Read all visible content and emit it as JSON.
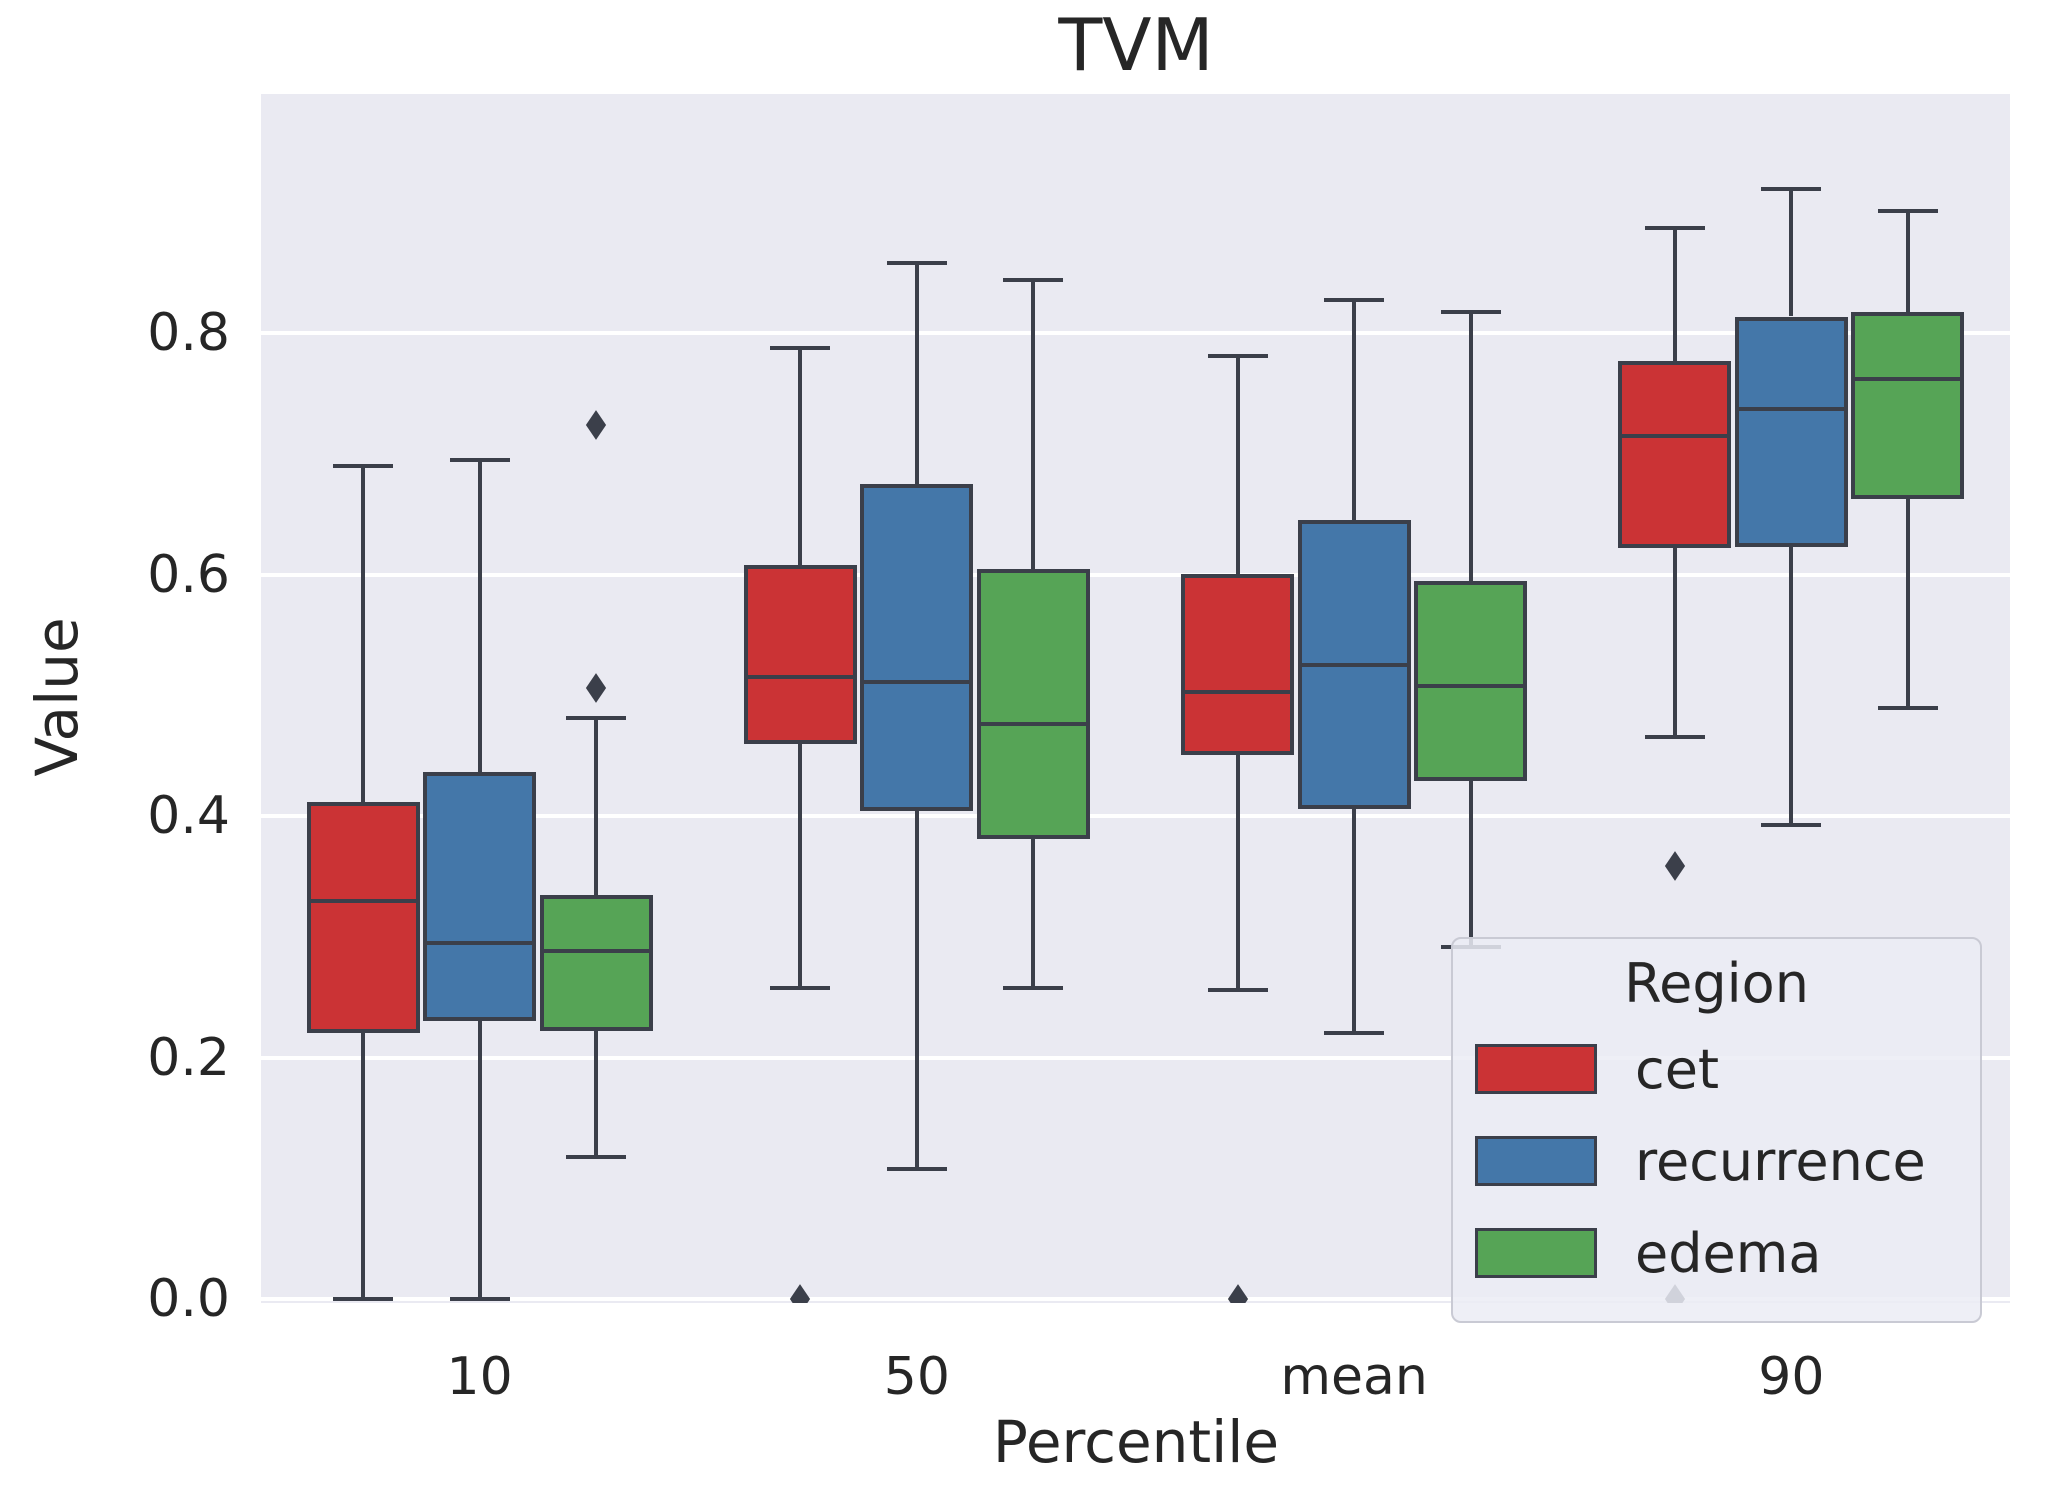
{
  "title": "TVM",
  "colors": {
    "cet": "#cb3335",
    "recurrence": "#4477a9",
    "edema": "#56a456",
    "box_line": "#3b3f4a",
    "plot_background": "#eaeaf2",
    "gridline": "#ffffff",
    "text": "#262626"
  },
  "chart_data": {
    "type": "box",
    "title": "TVM",
    "xlabel": "Percentile",
    "ylabel": "Value",
    "legend_title": "Region",
    "legend_position": "lower right",
    "grid": true,
    "categories": [
      "10",
      "50",
      "mean",
      "90"
    ],
    "yticks": [
      0.0,
      0.2,
      0.4,
      0.6,
      0.8
    ],
    "ylim": [
      -0.003,
      0.998
    ],
    "series": [
      {
        "name": "cet",
        "color": "#cb3335",
        "boxes": [
          {
            "category": "10",
            "whislo": 0.0,
            "q1": 0.22,
            "med": 0.33,
            "q3": 0.412,
            "whishi": 0.69,
            "fliers": []
          },
          {
            "category": "50",
            "whislo": 0.258,
            "q1": 0.46,
            "med": 0.515,
            "q3": 0.608,
            "whishi": 0.788,
            "fliers": [
              0.0
            ]
          },
          {
            "category": "mean",
            "whislo": 0.256,
            "q1": 0.451,
            "med": 0.503,
            "q3": 0.601,
            "whishi": 0.781,
            "fliers": [
              0.0
            ]
          },
          {
            "category": "90",
            "whislo": 0.466,
            "q1": 0.622,
            "med": 0.715,
            "q3": 0.777,
            "whishi": 0.887,
            "fliers": [
              0.359,
              0.0
            ]
          }
        ]
      },
      {
        "name": "recurrence",
        "color": "#4477a9",
        "boxes": [
          {
            "category": "10",
            "whislo": 0.0,
            "q1": 0.23,
            "med": 0.295,
            "q3": 0.437,
            "whishi": 0.695,
            "fliers": []
          },
          {
            "category": "50",
            "whislo": 0.108,
            "q1": 0.404,
            "med": 0.511,
            "q3": 0.675,
            "whishi": 0.858,
            "fliers": []
          },
          {
            "category": "mean",
            "whislo": 0.22,
            "q1": 0.406,
            "med": 0.525,
            "q3": 0.645,
            "whishi": 0.828,
            "fliers": []
          },
          {
            "category": "90",
            "whislo": 0.393,
            "q1": 0.623,
            "med": 0.737,
            "q3": 0.814,
            "whishi": 0.92,
            "fliers": []
          }
        ]
      },
      {
        "name": "edema",
        "color": "#56a456",
        "boxes": [
          {
            "category": "10",
            "whislo": 0.118,
            "q1": 0.222,
            "med": 0.288,
            "q3": 0.335,
            "whishi": 0.481,
            "fliers": [
              0.506,
              0.724
            ]
          },
          {
            "category": "50",
            "whislo": 0.258,
            "q1": 0.381,
            "med": 0.476,
            "q3": 0.605,
            "whishi": 0.844,
            "fliers": []
          },
          {
            "category": "mean",
            "whislo": 0.292,
            "q1": 0.429,
            "med": 0.508,
            "q3": 0.595,
            "whishi": 0.818,
            "fliers": []
          },
          {
            "category": "90",
            "whislo": 0.49,
            "q1": 0.663,
            "med": 0.762,
            "q3": 0.818,
            "whishi": 0.901,
            "fliers": []
          }
        ]
      }
    ]
  }
}
